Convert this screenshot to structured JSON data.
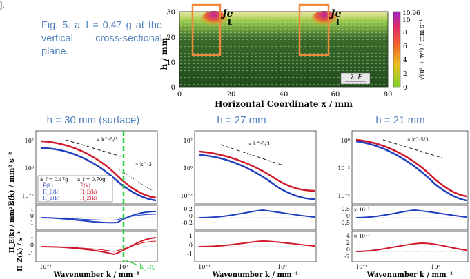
{
  "fragment": "].",
  "caption": "Fig. 5. a_f = 0.47 g at the vertical cross-sectional plane.",
  "vfield": {
    "ylabel": "h / mm",
    "xlabel": "Horizontal Coordinate x / mm",
    "xticks": [
      "0",
      "20",
      "40",
      "60",
      "80"
    ],
    "yticks": [
      "0",
      "10",
      "20",
      "30"
    ],
    "jet_label": "Je",
    "jet_label2": "t",
    "scale_label": "λ_F",
    "cbar_ticks": [
      "0",
      "2",
      "4",
      "6",
      "8"
    ],
    "cbar_top": "10.96",
    "cbar_top2": "10",
    "cbar_label": "√(u² + w²) / mm s⁻¹"
  },
  "panels": [
    {
      "title": "h = 30 mm (surface)"
    },
    {
      "title": "h = 27 mm"
    },
    {
      "title": "h = 21 mm"
    }
  ],
  "spectra": {
    "ylabel_top": "E(k) / mm² s⁻²",
    "ylabel_mid": "Π_E(k) / mm² s⁻³",
    "ylabel_bot": "Π_Z(k) / s⁻³",
    "xlabel": "Wavenumber k / mm⁻¹",
    "slope1": "∝ k^-5/3",
    "slope2": "∝ k^-3",
    "kinj": "k_inj",
    "legend": {
      "a": "a_f = 0.47g",
      "b": "a_f = 0.70g",
      "e1": "E(k)",
      "e2": "E(k)",
      "p1": "Π_E(k)",
      "p2": "Π_E(k)",
      "z1": "Π_Z(k)",
      "z2": "Π_Z(k)"
    },
    "top_yticks": [
      [
        "10²",
        "10⁰",
        "10⁻²"
      ],
      [
        "10²",
        "10⁰",
        "10⁻²"
      ],
      [
        "10⁰",
        "10⁻²",
        "10⁻⁴"
      ]
    ],
    "mid_yticks": [
      [
        "1",
        "0",
        "-1"
      ],
      [
        "0.2",
        "0",
        "-0.2"
      ],
      [
        "0.5",
        "0",
        "-0.5"
      ]
    ],
    "bot_yticks": [
      [
        "1",
        "0",
        "-1"
      ],
      [
        "1",
        "0",
        "-1"
      ],
      [
        "4",
        "2",
        "0",
        "-2"
      ]
    ],
    "mid_mult": [
      "",
      "",
      "× 10⁻³"
    ],
    "bot_mult": [
      "",
      "",
      "× 10⁻³"
    ],
    "xticks": [
      "10⁻¹",
      "10⁰"
    ]
  },
  "colors": {
    "caption": "#4f81bd",
    "blue": "#1f3fbf",
    "red": "#d0182a",
    "green": "#2ecc40",
    "box": "#ef8a3c"
  }
}
